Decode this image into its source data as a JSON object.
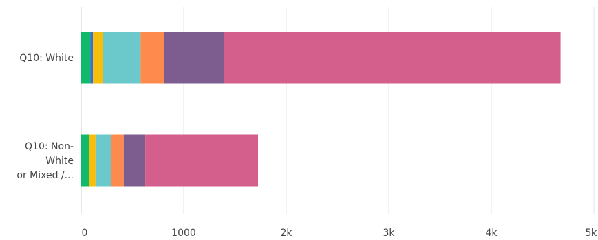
{
  "chart_data": {
    "type": "bar",
    "orientation": "horizontal",
    "stacked": true,
    "categories": [
      [
        "Q10: White"
      ],
      [
        "Q10: Non-",
        "White",
        "or Mixed /..."
      ]
    ],
    "category_names": [
      "Q10: White",
      "Q10: Non-White or Mixed /..."
    ],
    "series": [
      {
        "color": "#10b96b",
        "values": [
          90,
          75
        ]
      },
      {
        "color": "#3f6bd6",
        "values": [
          25,
          0
        ]
      },
      {
        "color": "#f7bf0a",
        "values": [
          95,
          65
        ]
      },
      {
        "color": "#6bc9cb",
        "values": [
          370,
          155
        ]
      },
      {
        "color": "#ff8a4d",
        "values": [
          225,
          120
        ]
      },
      {
        "color": "#7d5d8f",
        "values": [
          590,
          210
        ]
      },
      {
        "color": "#d45e8c",
        "values": [
          3280,
          1100
        ]
      }
    ],
    "xlim": [
      0,
      5000
    ],
    "x_ticks": [
      {
        "value": 0,
        "label": "0"
      },
      {
        "value": 1000,
        "label": "1000"
      },
      {
        "value": 2000,
        "label": "2k"
      },
      {
        "value": 3000,
        "label": "3k"
      },
      {
        "value": 4000,
        "label": "4k"
      },
      {
        "value": 5000,
        "label": "5k"
      }
    ],
    "grid": true,
    "legend": "none"
  }
}
